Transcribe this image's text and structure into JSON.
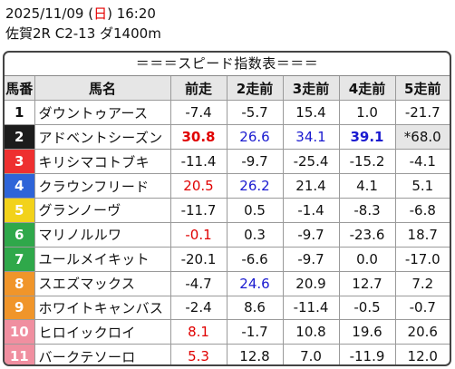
{
  "header": {
    "date": "2025/11/09 (",
    "dow": "日",
    "time": ") 16:20",
    "race": "佐賀2R C2-13 ダ1400m"
  },
  "title": "＝＝＝スピード指数表＝＝＝",
  "columns": [
    "馬番",
    "馬名",
    "前走",
    "2走前",
    "3走前",
    "4走前",
    "5走前"
  ],
  "rows": [
    {
      "ban": "1",
      "bg": "#ffffff",
      "fg": "#111111",
      "name": "ダウントゥアース",
      "vals": [
        {
          "v": "-7.4",
          "s": ""
        },
        {
          "v": "-5.7",
          "s": ""
        },
        {
          "v": "15.4",
          "s": ""
        },
        {
          "v": "1.0",
          "s": ""
        },
        {
          "v": "-21.7",
          "s": ""
        }
      ]
    },
    {
      "ban": "2",
      "bg": "#1c1c1c",
      "fg": "#ffffff",
      "name": "アドベントシーズン",
      "vals": [
        {
          "v": "30.8",
          "s": "red bold"
        },
        {
          "v": "26.6",
          "s": "blue"
        },
        {
          "v": "34.1",
          "s": "blue"
        },
        {
          "v": "39.1",
          "s": "blue bold"
        },
        {
          "v": "*68.0",
          "s": "gray"
        }
      ]
    },
    {
      "ban": "3",
      "bg": "#ee3030",
      "fg": "#ffffff",
      "name": "キリシマコトブキ",
      "vals": [
        {
          "v": "-11.4",
          "s": ""
        },
        {
          "v": "-9.7",
          "s": ""
        },
        {
          "v": "-25.4",
          "s": ""
        },
        {
          "v": "-15.2",
          "s": ""
        },
        {
          "v": "-4.1",
          "s": ""
        }
      ]
    },
    {
      "ban": "4",
      "bg": "#2e64d8",
      "fg": "#ffffff",
      "name": "クラウンフリード",
      "vals": [
        {
          "v": "20.5",
          "s": "red"
        },
        {
          "v": "26.2",
          "s": "blue"
        },
        {
          "v": "21.4",
          "s": ""
        },
        {
          "v": "4.1",
          "s": ""
        },
        {
          "v": "5.1",
          "s": ""
        }
      ]
    },
    {
      "ban": "5",
      "bg": "#f2d21a",
      "fg": "#ffffff",
      "name": "グランノーヴ",
      "vals": [
        {
          "v": "-11.7",
          "s": ""
        },
        {
          "v": "0.5",
          "s": ""
        },
        {
          "v": "-1.4",
          "s": ""
        },
        {
          "v": "-8.3",
          "s": ""
        },
        {
          "v": "-6.8",
          "s": ""
        }
      ]
    },
    {
      "ban": "6",
      "bg": "#2fa84a",
      "fg": "#ffffff",
      "name": "マリノルルワ",
      "vals": [
        {
          "v": "-0.1",
          "s": "red"
        },
        {
          "v": "0.3",
          "s": ""
        },
        {
          "v": "-9.7",
          "s": ""
        },
        {
          "v": "-23.6",
          "s": ""
        },
        {
          "v": "18.7",
          "s": ""
        }
      ]
    },
    {
      "ban": "7",
      "bg": "#2fa84a",
      "fg": "#ffffff",
      "name": "ユールメイキット",
      "vals": [
        {
          "v": "-20.1",
          "s": ""
        },
        {
          "v": "-6.6",
          "s": ""
        },
        {
          "v": "-9.7",
          "s": ""
        },
        {
          "v": "0.0",
          "s": ""
        },
        {
          "v": "-17.0",
          "s": ""
        }
      ]
    },
    {
      "ban": "8",
      "bg": "#f0952a",
      "fg": "#ffffff",
      "name": "スエズマックス",
      "vals": [
        {
          "v": "-4.7",
          "s": ""
        },
        {
          "v": "24.6",
          "s": "blue"
        },
        {
          "v": "20.9",
          "s": ""
        },
        {
          "v": "12.7",
          "s": ""
        },
        {
          "v": "7.2",
          "s": ""
        }
      ]
    },
    {
      "ban": "9",
      "bg": "#f0952a",
      "fg": "#ffffff",
      "name": "ホワイトキャンバス",
      "vals": [
        {
          "v": "-2.4",
          "s": ""
        },
        {
          "v": "8.6",
          "s": ""
        },
        {
          "v": "-11.4",
          "s": ""
        },
        {
          "v": "-0.5",
          "s": ""
        },
        {
          "v": "-0.7",
          "s": ""
        }
      ]
    },
    {
      "ban": "10",
      "bg": "#f08fa0",
      "fg": "#ffffff",
      "name": "ヒロイックロイ",
      "vals": [
        {
          "v": "8.1",
          "s": "red"
        },
        {
          "v": "-1.7",
          "s": ""
        },
        {
          "v": "10.8",
          "s": ""
        },
        {
          "v": "19.6",
          "s": ""
        },
        {
          "v": "20.6",
          "s": ""
        }
      ]
    },
    {
      "ban": "11",
      "bg": "#f08fa0",
      "fg": "#ffffff",
      "name": "バークテソーロ",
      "vals": [
        {
          "v": "5.3",
          "s": "red"
        },
        {
          "v": "12.8",
          "s": ""
        },
        {
          "v": "7.0",
          "s": ""
        },
        {
          "v": "-11.9",
          "s": ""
        },
        {
          "v": "12.0",
          "s": ""
        }
      ]
    }
  ]
}
